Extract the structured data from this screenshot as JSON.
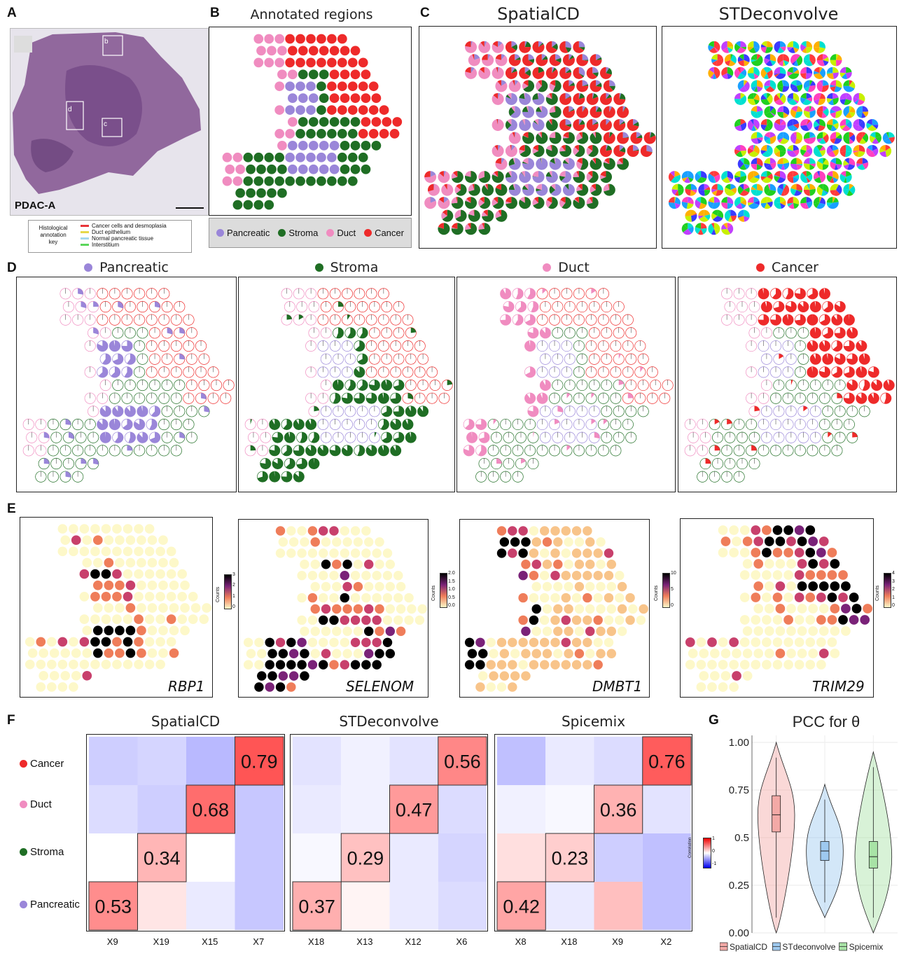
{
  "panels": {
    "A": "A",
    "B": "B",
    "C": "C",
    "D": "D",
    "E": "E",
    "F": "F",
    "G": "G"
  },
  "panel_a": {
    "sample_label": "PDAC-A",
    "box_labels": [
      "b",
      "d",
      "c"
    ],
    "key_title": [
      "Histological",
      "annotation",
      "key"
    ],
    "key_items": [
      {
        "label": "Cancer cells and desmoplasia",
        "color": "#e8353a"
      },
      {
        "label": "Duct epithelium",
        "color": "#e6d84a"
      },
      {
        "label": "Normal pancreatic tissue",
        "color": "#a6d8ee"
      },
      {
        "label": "Interstitium",
        "color": "#5bd65b"
      }
    ]
  },
  "panel_b": {
    "title": "Annotated regions",
    "legend": [
      {
        "label": "Pancreatic",
        "color": "#9a86d9"
      },
      {
        "label": "Stroma",
        "color": "#1f6e24"
      },
      {
        "label": "Duct",
        "color": "#f08cc0"
      },
      {
        "label": "Cancer",
        "color": "#ee2a2a"
      }
    ]
  },
  "panel_c": {
    "titles": [
      "SpatialCD",
      "STDeconvolve"
    ]
  },
  "panel_d": {
    "titles": [
      {
        "label": "Pancreatic",
        "color": "#9a86d9"
      },
      {
        "label": "Stroma",
        "color": "#1f6e24"
      },
      {
        "label": "Duct",
        "color": "#f08cc0"
      },
      {
        "label": "Cancer",
        "color": "#ee2a2a"
      }
    ]
  },
  "panel_e": {
    "genes": [
      "RBP1",
      "SELENOM",
      "DMBT1",
      "TRIM29"
    ],
    "colorbar_title": "Counts",
    "colorbar_ticks": [
      [
        "3",
        "2",
        "1",
        "0"
      ],
      [
        "2.0",
        "1.5",
        "1.0",
        "0.5",
        "0.0"
      ],
      [
        "10",
        "5",
        "0"
      ],
      [
        "4",
        "3",
        "2",
        "1",
        "0"
      ]
    ]
  },
  "panel_f": {
    "row_labels": [
      {
        "label": "Cancer",
        "color": "#ee2a2a"
      },
      {
        "label": "Duct",
        "color": "#f08cc0"
      },
      {
        "label": "Stroma",
        "color": "#1f6e24"
      },
      {
        "label": "Pancreatic",
        "color": "#9a86d9"
      }
    ],
    "colorbar_title": "Correlation",
    "colorbar_ticks": [
      "1",
      "0",
      "-1"
    ],
    "heatmaps": [
      {
        "title": "SpatialCD",
        "columns": [
          "X9",
          "X19",
          "X15",
          "X7"
        ],
        "matrix": [
          [
            -0.35,
            -0.3,
            -0.5,
            0.79
          ],
          [
            -0.25,
            -0.35,
            0.68,
            -0.4
          ],
          [
            0.0,
            0.34,
            0.0,
            -0.4
          ],
          [
            0.53,
            0.12,
            -0.15,
            -0.4
          ]
        ],
        "diagonal_labels": [
          "0.79",
          "0.68",
          "0.34",
          "0.53"
        ]
      },
      {
        "title": "STDeconvolve",
        "columns": [
          "X18",
          "X13",
          "X12",
          "X6"
        ],
        "matrix": [
          [
            -0.2,
            -0.1,
            -0.2,
            0.56
          ],
          [
            -0.15,
            -0.1,
            0.47,
            -0.25
          ],
          [
            -0.05,
            0.29,
            -0.15,
            -0.3
          ],
          [
            0.37,
            0.05,
            -0.15,
            -0.25
          ]
        ],
        "diagonal_labels": [
          "0.56",
          "0.47",
          "0.29",
          "0.37"
        ]
      },
      {
        "title": "Spicemix",
        "columns": [
          "X8",
          "X18",
          "X9",
          "X2"
        ],
        "matrix": [
          [
            -0.45,
            -0.15,
            -0.25,
            0.76
          ],
          [
            -0.1,
            -0.05,
            0.36,
            -0.2
          ],
          [
            0.15,
            0.23,
            -0.35,
            -0.45
          ],
          [
            0.42,
            -0.15,
            0.3,
            -0.45
          ]
        ],
        "diagonal_labels": [
          "0.76",
          "0.36",
          "0.23",
          "0.42"
        ]
      }
    ]
  },
  "chart_data": {
    "type": "violin",
    "title": "PCC for θ",
    "ylim": [
      0.0,
      1.0
    ],
    "yticks": [
      "0.00",
      "0.25",
      "0.5",
      "0.75",
      "1.00"
    ],
    "series": [
      {
        "name": "SpatialCD",
        "color": "#f3a9a6",
        "median": 0.62,
        "q1": 0.53,
        "q3": 0.72,
        "min": 0.0,
        "max": 1.0
      },
      {
        "name": "STdeconvolve",
        "color": "#9ec9ef",
        "median": 0.43,
        "q1": 0.38,
        "q3": 0.48,
        "min": 0.08,
        "max": 0.78
      },
      {
        "name": "Spicemix",
        "color": "#a8e3a6",
        "median": 0.4,
        "q1": 0.34,
        "q3": 0.48,
        "min": 0.0,
        "max": 0.95
      }
    ]
  }
}
